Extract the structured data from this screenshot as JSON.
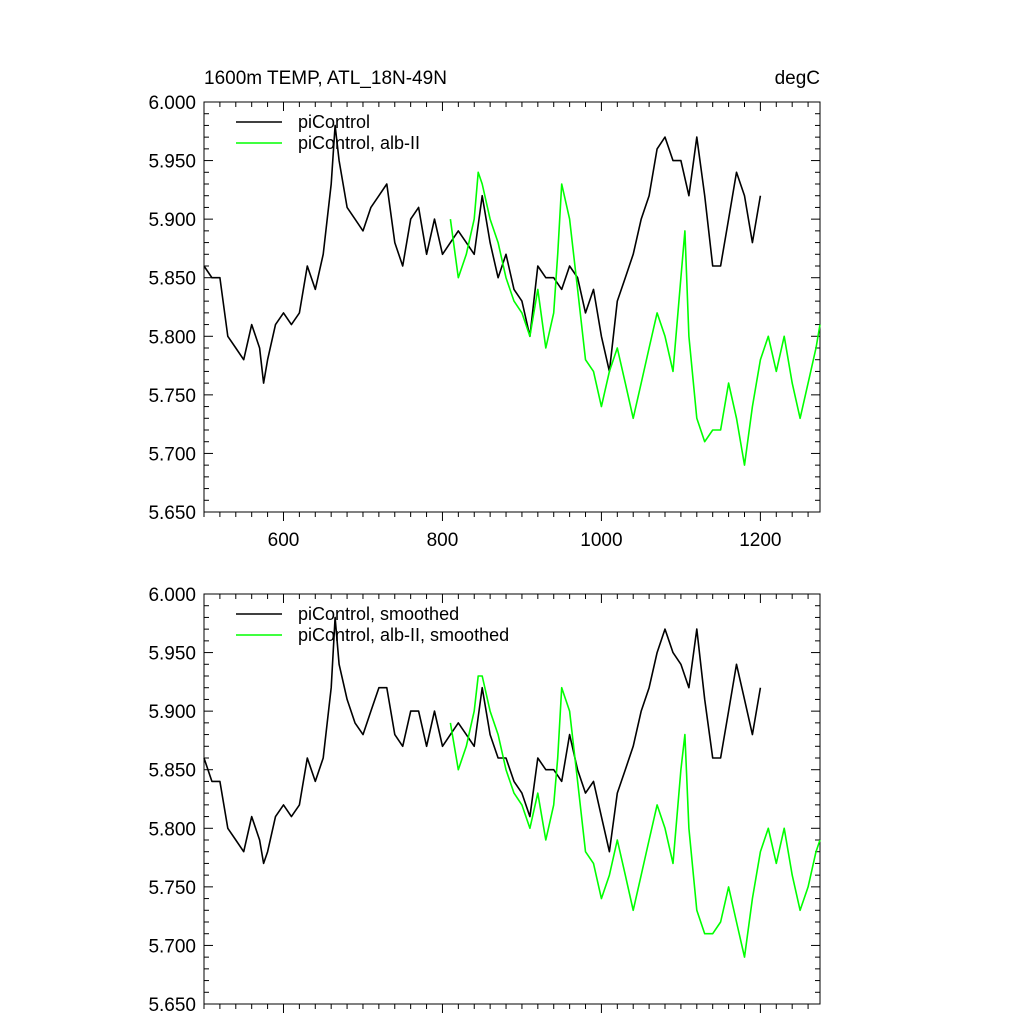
{
  "figure": {
    "title_left": "1600m TEMP, ATL_18N-49N",
    "title_right": "degC"
  },
  "chart_data": [
    {
      "type": "line",
      "xlim": [
        500,
        1275
      ],
      "ylim": [
        5.65,
        6.0
      ],
      "x_ticks": [
        600,
        800,
        1000,
        1200
      ],
      "x_tick_labels": [
        "600",
        "800",
        "1000",
        "1200"
      ],
      "y_ticks": [
        5.65,
        5.7,
        5.75,
        5.8,
        5.85,
        5.9,
        5.95,
        6.0
      ],
      "y_tick_labels": [
        "5.650",
        "5.700",
        "5.750",
        "5.800",
        "5.850",
        "5.900",
        "5.950",
        "6.000"
      ],
      "grid": false,
      "legend_position": "top-left",
      "series": [
        {
          "name": "piControl",
          "color": "#000000",
          "x": [
            500,
            510,
            520,
            530,
            540,
            550,
            560,
            570,
            575,
            580,
            590,
            600,
            610,
            620,
            630,
            640,
            650,
            660,
            665,
            670,
            680,
            690,
            700,
            710,
            720,
            730,
            740,
            750,
            760,
            770,
            780,
            790,
            800,
            810,
            820,
            830,
            840,
            850,
            860,
            870,
            880,
            890,
            900,
            910,
            920,
            930,
            940,
            950,
            960,
            970,
            980,
            990,
            1000,
            1010,
            1020,
            1030,
            1040,
            1050,
            1060,
            1070,
            1080,
            1090,
            1100,
            1110,
            1120,
            1130,
            1140,
            1150,
            1160,
            1170,
            1180,
            1190,
            1200
          ],
          "y": [
            5.86,
            5.85,
            5.85,
            5.8,
            5.79,
            5.78,
            5.81,
            5.79,
            5.76,
            5.78,
            5.81,
            5.82,
            5.81,
            5.82,
            5.86,
            5.84,
            5.87,
            5.93,
            5.98,
            5.95,
            5.91,
            5.9,
            5.89,
            5.91,
            5.92,
            5.93,
            5.88,
            5.86,
            5.9,
            5.91,
            5.87,
            5.9,
            5.87,
            5.88,
            5.89,
            5.88,
            5.87,
            5.92,
            5.88,
            5.85,
            5.87,
            5.84,
            5.83,
            5.8,
            5.86,
            5.85,
            5.85,
            5.84,
            5.86,
            5.85,
            5.82,
            5.84,
            5.8,
            5.77,
            5.83,
            5.85,
            5.87,
            5.9,
            5.92,
            5.96,
            5.97,
            5.95,
            5.95,
            5.92,
            5.97,
            5.92,
            5.86,
            5.86,
            5.9,
            5.94,
            5.92,
            5.88,
            5.92
          ]
        },
        {
          "name": "piControl, alb-II",
          "color": "#00ff00",
          "x": [
            810,
            820,
            830,
            840,
            845,
            850,
            860,
            870,
            880,
            890,
            900,
            910,
            920,
            930,
            940,
            945,
            950,
            960,
            970,
            980,
            990,
            1000,
            1010,
            1020,
            1030,
            1040,
            1050,
            1060,
            1070,
            1080,
            1090,
            1100,
            1105,
            1110,
            1120,
            1130,
            1140,
            1150,
            1160,
            1170,
            1180,
            1190,
            1200,
            1210,
            1220,
            1230,
            1240,
            1250,
            1260,
            1270,
            1275
          ],
          "y": [
            5.9,
            5.85,
            5.87,
            5.9,
            5.94,
            5.93,
            5.9,
            5.88,
            5.85,
            5.83,
            5.82,
            5.8,
            5.84,
            5.79,
            5.82,
            5.87,
            5.93,
            5.9,
            5.84,
            5.78,
            5.77,
            5.74,
            5.77,
            5.79,
            5.76,
            5.73,
            5.76,
            5.79,
            5.82,
            5.8,
            5.77,
            5.85,
            5.89,
            5.8,
            5.73,
            5.71,
            5.72,
            5.72,
            5.76,
            5.73,
            5.69,
            5.74,
            5.78,
            5.8,
            5.77,
            5.8,
            5.76,
            5.73,
            5.76,
            5.79,
            5.81
          ]
        }
      ]
    },
    {
      "type": "line",
      "xlim": [
        500,
        1275
      ],
      "ylim": [
        5.65,
        6.0
      ],
      "x_ticks": [
        600,
        800,
        1000,
        1200
      ],
      "x_tick_labels": [],
      "y_ticks": [
        5.65,
        5.7,
        5.75,
        5.8,
        5.85,
        5.9,
        5.95,
        6.0
      ],
      "y_tick_labels": [
        "5.650",
        "5.700",
        "5.750",
        "5.800",
        "5.850",
        "5.900",
        "5.950",
        "6.000"
      ],
      "grid": false,
      "legend_position": "top-left",
      "series": [
        {
          "name": "piControl, smoothed",
          "color": "#000000",
          "x": [
            500,
            510,
            520,
            530,
            540,
            550,
            560,
            570,
            575,
            580,
            590,
            600,
            610,
            620,
            630,
            640,
            650,
            660,
            665,
            670,
            680,
            690,
            700,
            710,
            720,
            730,
            740,
            750,
            760,
            770,
            780,
            790,
            800,
            810,
            820,
            830,
            840,
            850,
            860,
            870,
            880,
            890,
            900,
            910,
            920,
            930,
            940,
            950,
            960,
            970,
            980,
            990,
            1000,
            1010,
            1020,
            1030,
            1040,
            1050,
            1060,
            1070,
            1080,
            1090,
            1100,
            1110,
            1120,
            1130,
            1140,
            1150,
            1160,
            1170,
            1180,
            1190,
            1200
          ],
          "y": [
            5.86,
            5.84,
            5.84,
            5.8,
            5.79,
            5.78,
            5.81,
            5.79,
            5.77,
            5.78,
            5.81,
            5.82,
            5.81,
            5.82,
            5.86,
            5.84,
            5.86,
            5.92,
            5.98,
            5.94,
            5.91,
            5.89,
            5.88,
            5.9,
            5.92,
            5.92,
            5.88,
            5.87,
            5.9,
            5.9,
            5.87,
            5.9,
            5.87,
            5.88,
            5.89,
            5.88,
            5.87,
            5.92,
            5.88,
            5.86,
            5.86,
            5.84,
            5.83,
            5.81,
            5.86,
            5.85,
            5.85,
            5.84,
            5.88,
            5.85,
            5.83,
            5.84,
            5.81,
            5.78,
            5.83,
            5.85,
            5.87,
            5.9,
            5.92,
            5.95,
            5.97,
            5.95,
            5.94,
            5.92,
            5.97,
            5.91,
            5.86,
            5.86,
            5.9,
            5.94,
            5.91,
            5.88,
            5.92
          ]
        },
        {
          "name": "piControl, alb-II, smoothed",
          "color": "#00ff00",
          "x": [
            810,
            820,
            830,
            840,
            845,
            850,
            860,
            870,
            880,
            890,
            900,
            910,
            920,
            930,
            940,
            945,
            950,
            960,
            970,
            980,
            990,
            1000,
            1010,
            1020,
            1030,
            1040,
            1050,
            1060,
            1070,
            1080,
            1090,
            1100,
            1105,
            1110,
            1120,
            1130,
            1140,
            1150,
            1160,
            1170,
            1180,
            1190,
            1200,
            1210,
            1220,
            1230,
            1240,
            1250,
            1260,
            1270,
            1275
          ],
          "y": [
            5.89,
            5.85,
            5.87,
            5.9,
            5.93,
            5.93,
            5.9,
            5.88,
            5.85,
            5.83,
            5.82,
            5.8,
            5.83,
            5.79,
            5.82,
            5.86,
            5.92,
            5.9,
            5.84,
            5.78,
            5.77,
            5.74,
            5.76,
            5.79,
            5.76,
            5.73,
            5.76,
            5.79,
            5.82,
            5.8,
            5.77,
            5.85,
            5.88,
            5.8,
            5.73,
            5.71,
            5.71,
            5.72,
            5.75,
            5.72,
            5.69,
            5.74,
            5.78,
            5.8,
            5.77,
            5.8,
            5.76,
            5.73,
            5.75,
            5.78,
            5.79
          ]
        }
      ]
    }
  ]
}
